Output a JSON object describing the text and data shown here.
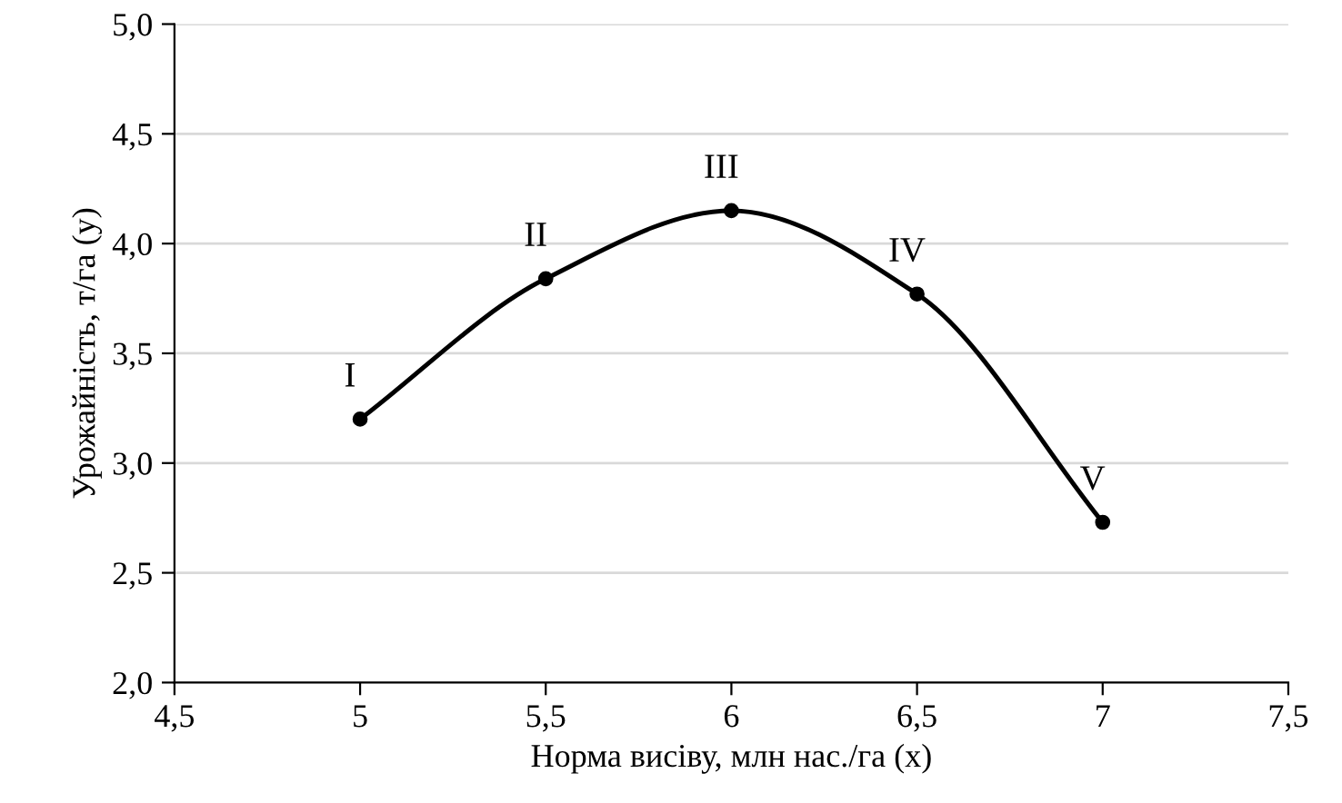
{
  "chart_data": {
    "type": "line",
    "xlabel": "Норма висіву, млн нас./га (x)",
    "ylabel": "Урожайність, т/га (y)",
    "x": [
      5,
      5.5,
      6,
      6.5,
      7
    ],
    "series": [
      {
        "color": "#000000",
        "values": [
          3.2,
          3.84,
          4.15,
          3.77,
          2.73
        ]
      }
    ],
    "xlim": [
      4.5,
      7.5
    ],
    "ylim": [
      2.0,
      5.0
    ],
    "xticks": [
      {
        "value": 4.5,
        "label": "4,5"
      },
      5,
      {
        "value": 5.5,
        "label": "5,5"
      },
      6,
      {
        "value": 6.5,
        "label": "6,5"
      },
      7,
      {
        "value": 7.5,
        "label": "7,5"
      }
    ],
    "yticks": [
      {
        "value": 2.0,
        "label": "2,0"
      },
      {
        "value": 2.5,
        "label": "2,5"
      },
      {
        "value": 3.0,
        "label": "3,0"
      },
      {
        "value": 3.5,
        "label": "3,5"
      },
      {
        "value": 4.0,
        "label": "4,0"
      },
      {
        "value": 4.5,
        "label": "4,5"
      },
      {
        "value": 5.0,
        "label": "5,0"
      }
    ],
    "grid": "y",
    "marker": "circle",
    "line_style": "solid",
    "annotations": [
      {
        "text": "I",
        "x": 5,
        "y": 3.2
      },
      {
        "text": "II",
        "x": 5.5,
        "y": 3.84
      },
      {
        "text": "III",
        "x": 6,
        "y": 4.15
      },
      {
        "text": "IV",
        "x": 6.5,
        "y": 3.77
      },
      {
        "text": "V",
        "x": 7,
        "y": 2.73
      }
    ]
  }
}
